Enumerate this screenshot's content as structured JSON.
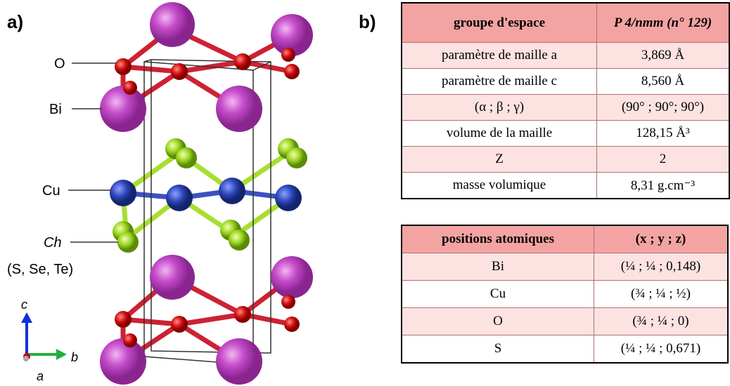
{
  "panel_a": {
    "label": "a)",
    "atoms": {
      "o": "O",
      "bi": "Bi",
      "cu": "Cu",
      "ch": "Ch",
      "ch_elements": "(S, Se, Te)"
    },
    "axes": {
      "c": "c",
      "b": "b",
      "a": "a"
    }
  },
  "panel_b": {
    "label": "b)",
    "table1": {
      "header": [
        "groupe d'espace",
        "P 4/nmm (n° 129)"
      ],
      "rows": [
        [
          "paramètre de maille a",
          "3,869 Å"
        ],
        [
          "paramètre de maille c",
          "8,560 Å"
        ],
        [
          "(α ; β ; γ)",
          "(90° ; 90°; 90°)"
        ],
        [
          "volume de la maille",
          "128,15 Å³"
        ],
        [
          "Z",
          "2"
        ],
        [
          "masse volumique",
          "8,31 g.cm⁻³"
        ]
      ]
    },
    "table2": {
      "header": [
        "positions atomiques",
        "(x ; y ; z)"
      ],
      "rows": [
        [
          "Bi",
          "(¼ ; ¼ ; 0,148)"
        ],
        [
          "Cu",
          "(¾ ; ¼ ; ½)"
        ],
        [
          "O",
          "(¾ ; ¼ ; 0)"
        ],
        [
          "S",
          "(¼ ; ¼ ; 0,671)"
        ]
      ]
    }
  }
}
